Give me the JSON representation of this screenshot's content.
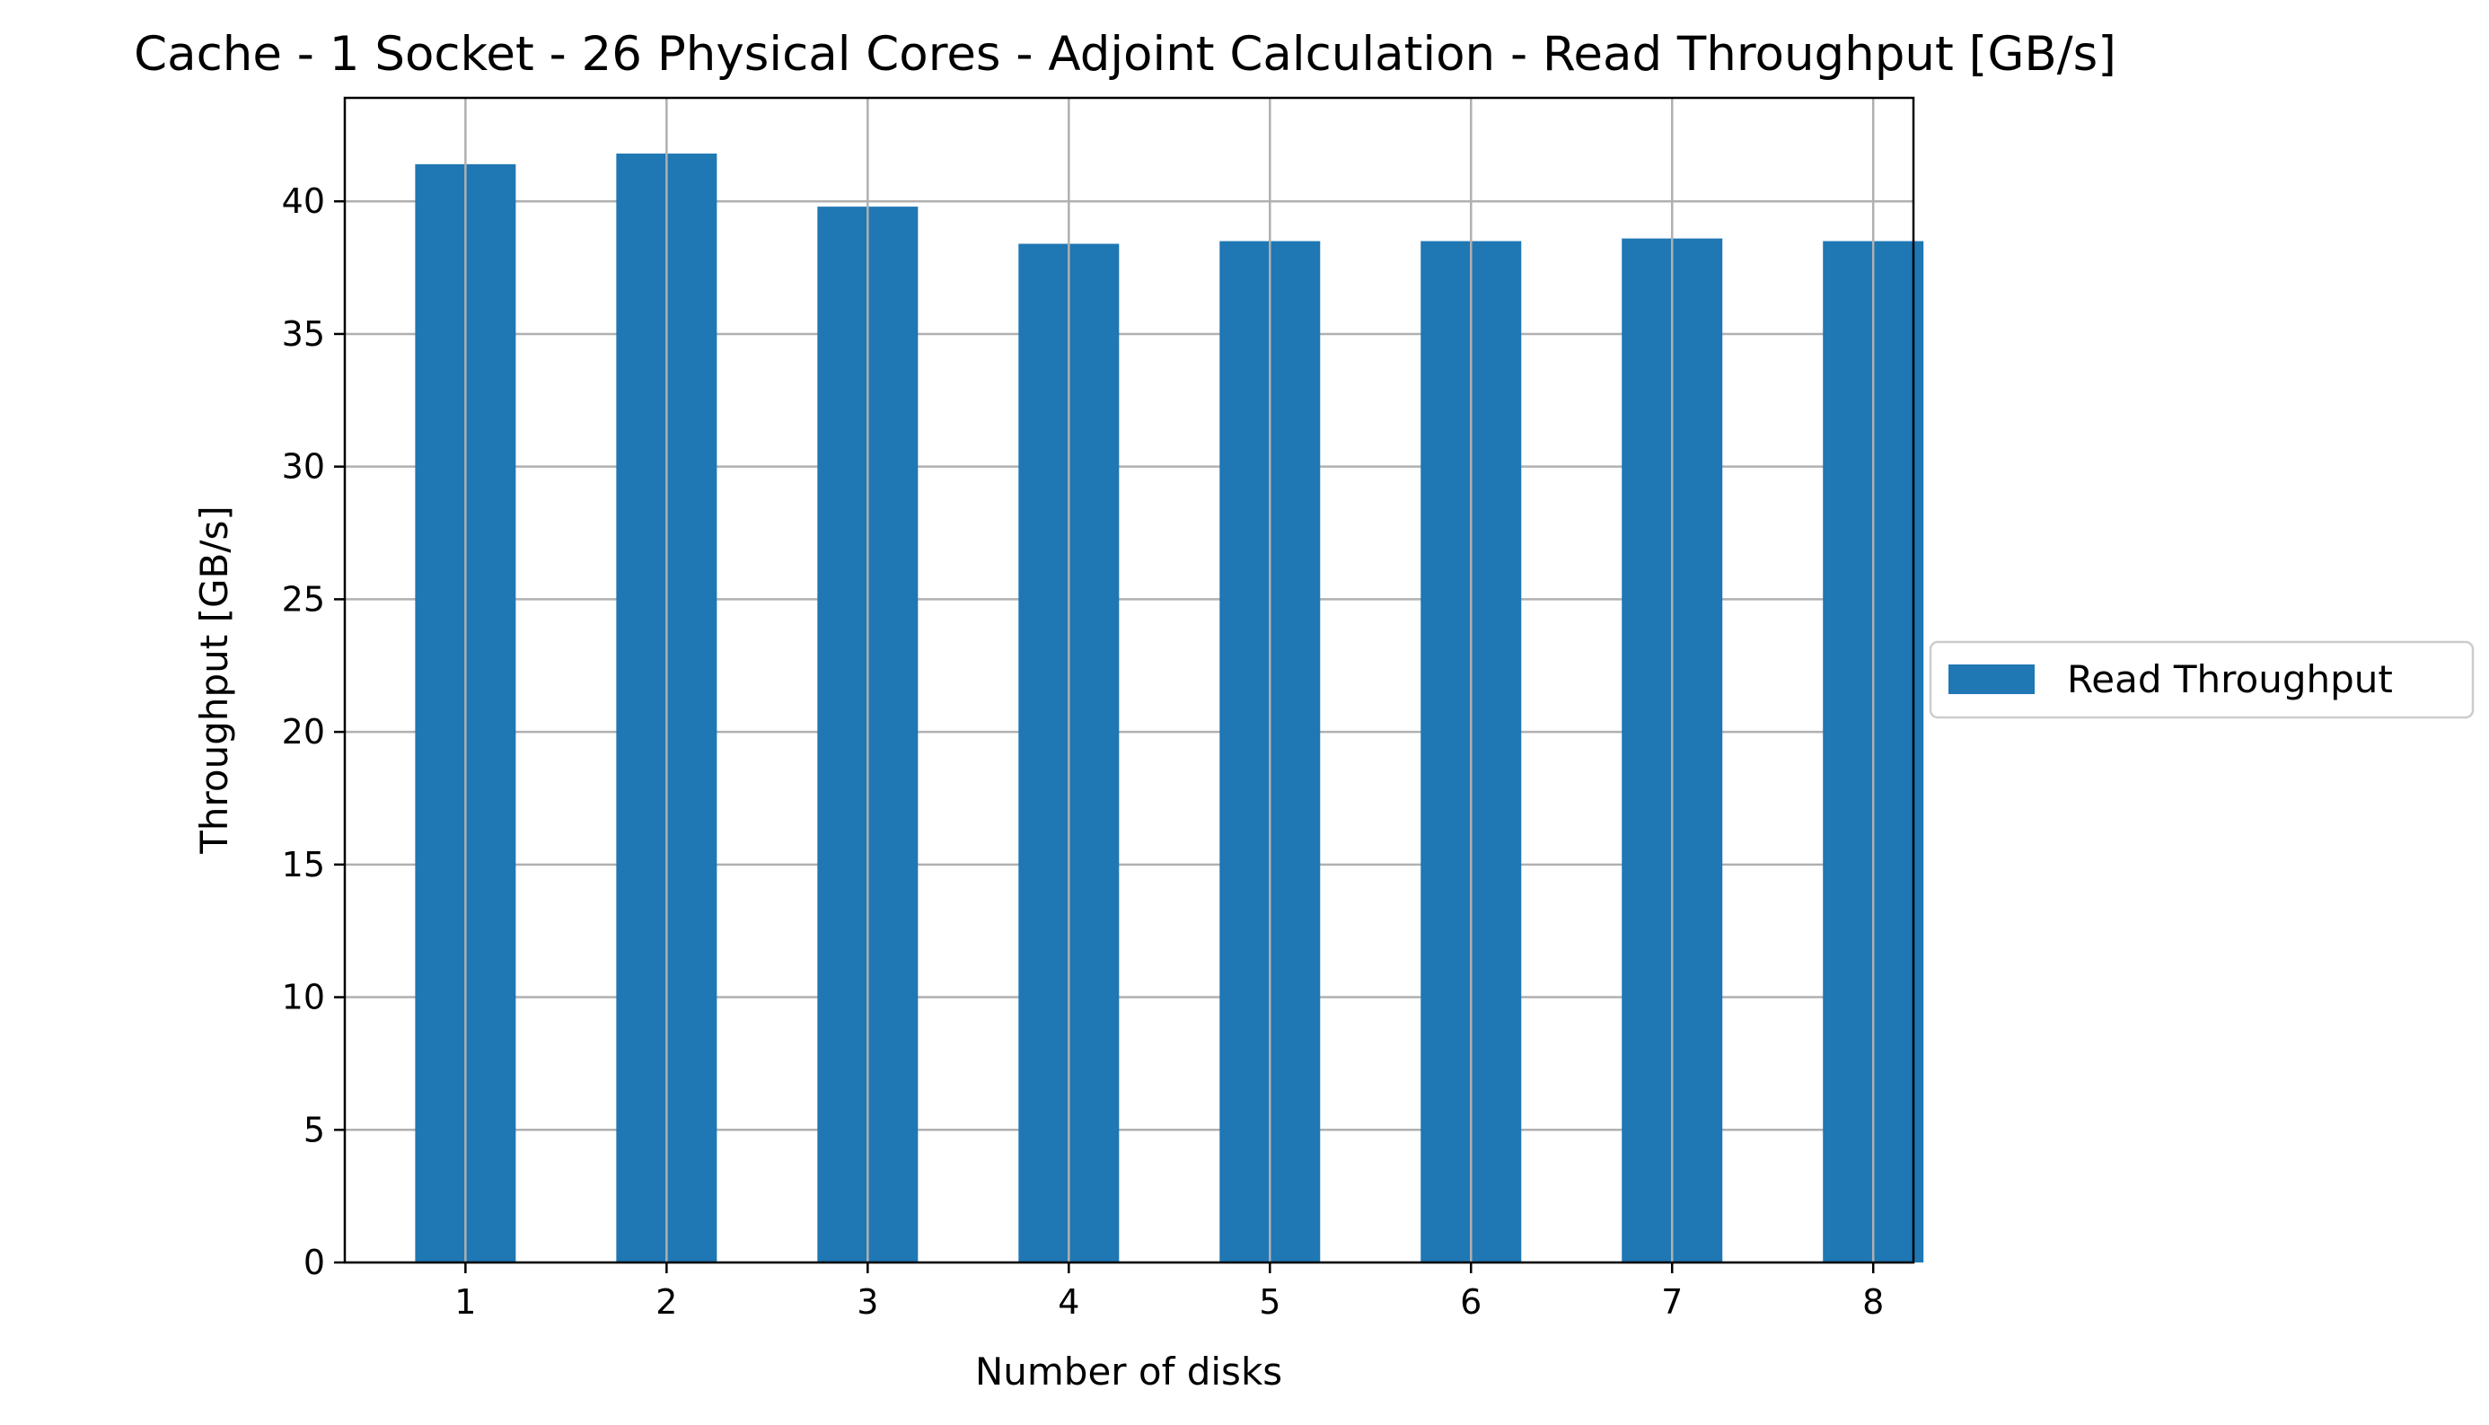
{
  "chart_data": {
    "type": "bar",
    "title": "Cache - 1 Socket - 26 Physical Cores - Adjoint Calculation - Read Throughput [GB/s]",
    "xlabel": "Number of disks",
    "ylabel": "Throughput [GB/s]",
    "categories": [
      "1",
      "2",
      "3",
      "4",
      "5",
      "6",
      "7",
      "8"
    ],
    "series": [
      {
        "name": "Read Throughput",
        "values": [
          41.4,
          41.8,
          39.8,
          38.4,
          38.5,
          38.5,
          38.6,
          38.5
        ],
        "color": "#1f77b4"
      }
    ],
    "ylim": [
      0,
      43.9
    ],
    "yticks": [
      0,
      5,
      10,
      15,
      20,
      25,
      30,
      35,
      40
    ],
    "grid": true,
    "legend": {
      "placement": "center-right-outside"
    }
  }
}
